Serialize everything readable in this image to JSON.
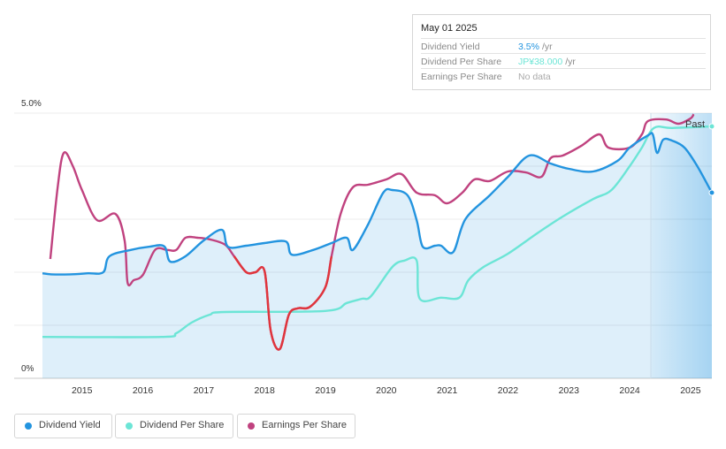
{
  "tooltip": {
    "date": "May 01 2025",
    "rows": [
      {
        "label": "Dividend Yield",
        "value": "3.5%",
        "unit": "/yr",
        "color": "#2394df"
      },
      {
        "label": "Dividend Per Share",
        "value": "JP¥38.000",
        "unit": "/yr",
        "color": "#6ce5d6"
      },
      {
        "label": "Earnings Per Share",
        "value": "No data",
        "unit": "",
        "color": "#aaaaaa"
      }
    ]
  },
  "past_label": "Past",
  "legend": [
    {
      "label": "Dividend Yield",
      "color": "#2394df"
    },
    {
      "label": "Dividend Per Share",
      "color": "#6ce5d6"
    },
    {
      "label": "Earnings Per Share",
      "color": "#c0427f"
    }
  ],
  "chart_data": {
    "type": "line",
    "x_ticks": [
      "2015",
      "2016",
      "2017",
      "2018",
      "2019",
      "2020",
      "2021",
      "2022",
      "2023",
      "2024",
      "2025"
    ],
    "y_tick_labels": [
      "5.0%",
      "0%"
    ],
    "xlim": [
      2014.35,
      2025.35
    ],
    "ylim": [
      0,
      5.0
    ],
    "grid": true,
    "series": [
      {
        "name": "Dividend Yield",
        "color": "#2394df",
        "filled": true,
        "points": [
          [
            2014.35,
            1.98
          ],
          [
            2014.5,
            1.96
          ],
          [
            2014.8,
            1.96
          ],
          [
            2015.1,
            1.98
          ],
          [
            2015.35,
            2.0
          ],
          [
            2015.45,
            2.3
          ],
          [
            2015.8,
            2.42
          ],
          [
            2016.1,
            2.48
          ],
          [
            2016.35,
            2.49
          ],
          [
            2016.45,
            2.2
          ],
          [
            2016.7,
            2.3
          ],
          [
            2017.0,
            2.6
          ],
          [
            2017.3,
            2.8
          ],
          [
            2017.4,
            2.48
          ],
          [
            2017.7,
            2.5
          ],
          [
            2018.0,
            2.55
          ],
          [
            2018.35,
            2.58
          ],
          [
            2018.45,
            2.33
          ],
          [
            2018.8,
            2.42
          ],
          [
            2019.1,
            2.55
          ],
          [
            2019.35,
            2.65
          ],
          [
            2019.45,
            2.42
          ],
          [
            2019.7,
            2.9
          ],
          [
            2019.95,
            3.5
          ],
          [
            2020.1,
            3.55
          ],
          [
            2020.35,
            3.45
          ],
          [
            2020.5,
            2.98
          ],
          [
            2020.6,
            2.48
          ],
          [
            2020.8,
            2.5
          ],
          [
            2020.9,
            2.5
          ],
          [
            2021.1,
            2.38
          ],
          [
            2021.3,
            3.0
          ],
          [
            2021.7,
            3.45
          ],
          [
            2022.0,
            3.8
          ],
          [
            2022.35,
            4.2
          ],
          [
            2022.7,
            4.05
          ],
          [
            2023.0,
            3.95
          ],
          [
            2023.4,
            3.9
          ],
          [
            2023.8,
            4.1
          ],
          [
            2024.0,
            4.35
          ],
          [
            2024.3,
            4.58
          ],
          [
            2024.38,
            4.6
          ],
          [
            2024.45,
            4.25
          ],
          [
            2024.55,
            4.5
          ],
          [
            2024.7,
            4.48
          ],
          [
            2024.9,
            4.35
          ],
          [
            2025.1,
            4.02
          ],
          [
            2025.35,
            3.5
          ]
        ]
      },
      {
        "name": "Dividend Per Share",
        "color": "#6ce5d6",
        "filled": false,
        "points": [
          [
            2014.35,
            0.78
          ],
          [
            2016.3,
            0.78
          ],
          [
            2016.55,
            0.85
          ],
          [
            2016.8,
            1.05
          ],
          [
            2017.1,
            1.2
          ],
          [
            2017.35,
            1.25
          ],
          [
            2019.0,
            1.27
          ],
          [
            2019.35,
            1.42
          ],
          [
            2019.6,
            1.5
          ],
          [
            2019.75,
            1.55
          ],
          [
            2020.1,
            2.1
          ],
          [
            2020.3,
            2.22
          ],
          [
            2020.5,
            2.22
          ],
          [
            2020.55,
            1.5
          ],
          [
            2020.9,
            1.52
          ],
          [
            2021.2,
            1.52
          ],
          [
            2021.35,
            1.85
          ],
          [
            2021.6,
            2.1
          ],
          [
            2022.0,
            2.35
          ],
          [
            2022.5,
            2.75
          ],
          [
            2022.9,
            3.05
          ],
          [
            2023.4,
            3.38
          ],
          [
            2023.7,
            3.55
          ],
          [
            2024.0,
            4.0
          ],
          [
            2024.2,
            4.35
          ],
          [
            2024.4,
            4.72
          ],
          [
            2024.7,
            4.72
          ],
          [
            2025.35,
            4.75
          ]
        ]
      },
      {
        "name": "Earnings Per Share",
        "color": "#c0427f",
        "filled": false,
        "points": [
          [
            2014.48,
            2.25
          ],
          [
            2014.6,
            3.6
          ],
          [
            2014.7,
            4.25
          ],
          [
            2014.85,
            4.0
          ],
          [
            2015.0,
            3.55
          ],
          [
            2015.25,
            2.98
          ],
          [
            2015.55,
            3.1
          ],
          [
            2015.7,
            2.6
          ],
          [
            2015.75,
            1.8
          ],
          [
            2015.85,
            1.85
          ],
          [
            2016.0,
            1.95
          ],
          [
            2016.2,
            2.42
          ],
          [
            2016.4,
            2.42
          ],
          [
            2016.55,
            2.42
          ],
          [
            2016.7,
            2.65
          ],
          [
            2016.9,
            2.65
          ],
          [
            2017.1,
            2.62
          ],
          [
            2017.35,
            2.52
          ],
          [
            2017.5,
            2.3
          ],
          [
            2017.7,
            2.0
          ],
          [
            2017.85,
            2.0
          ],
          [
            2018.0,
            2.02
          ],
          [
            2018.1,
            0.9
          ],
          [
            2018.25,
            0.55
          ],
          [
            2018.4,
            1.2
          ],
          [
            2018.55,
            1.32
          ],
          [
            2018.75,
            1.35
          ],
          [
            2019.0,
            1.72
          ],
          [
            2019.1,
            2.3
          ],
          [
            2019.25,
            3.1
          ],
          [
            2019.45,
            3.6
          ],
          [
            2019.7,
            3.65
          ],
          [
            2020.0,
            3.75
          ],
          [
            2020.25,
            3.85
          ],
          [
            2020.5,
            3.5
          ],
          [
            2020.8,
            3.45
          ],
          [
            2021.0,
            3.3
          ],
          [
            2021.25,
            3.5
          ],
          [
            2021.45,
            3.75
          ],
          [
            2021.7,
            3.72
          ],
          [
            2022.0,
            3.9
          ],
          [
            2022.3,
            3.88
          ],
          [
            2022.55,
            3.8
          ],
          [
            2022.7,
            4.15
          ],
          [
            2022.9,
            4.2
          ],
          [
            2023.2,
            4.38
          ],
          [
            2023.5,
            4.6
          ],
          [
            2023.65,
            4.35
          ],
          [
            2024.0,
            4.35
          ],
          [
            2024.2,
            4.6
          ],
          [
            2024.3,
            4.85
          ],
          [
            2024.6,
            4.88
          ],
          [
            2024.8,
            4.8
          ],
          [
            2025.0,
            4.9
          ],
          [
            2025.05,
            4.98
          ]
        ]
      }
    ]
  }
}
